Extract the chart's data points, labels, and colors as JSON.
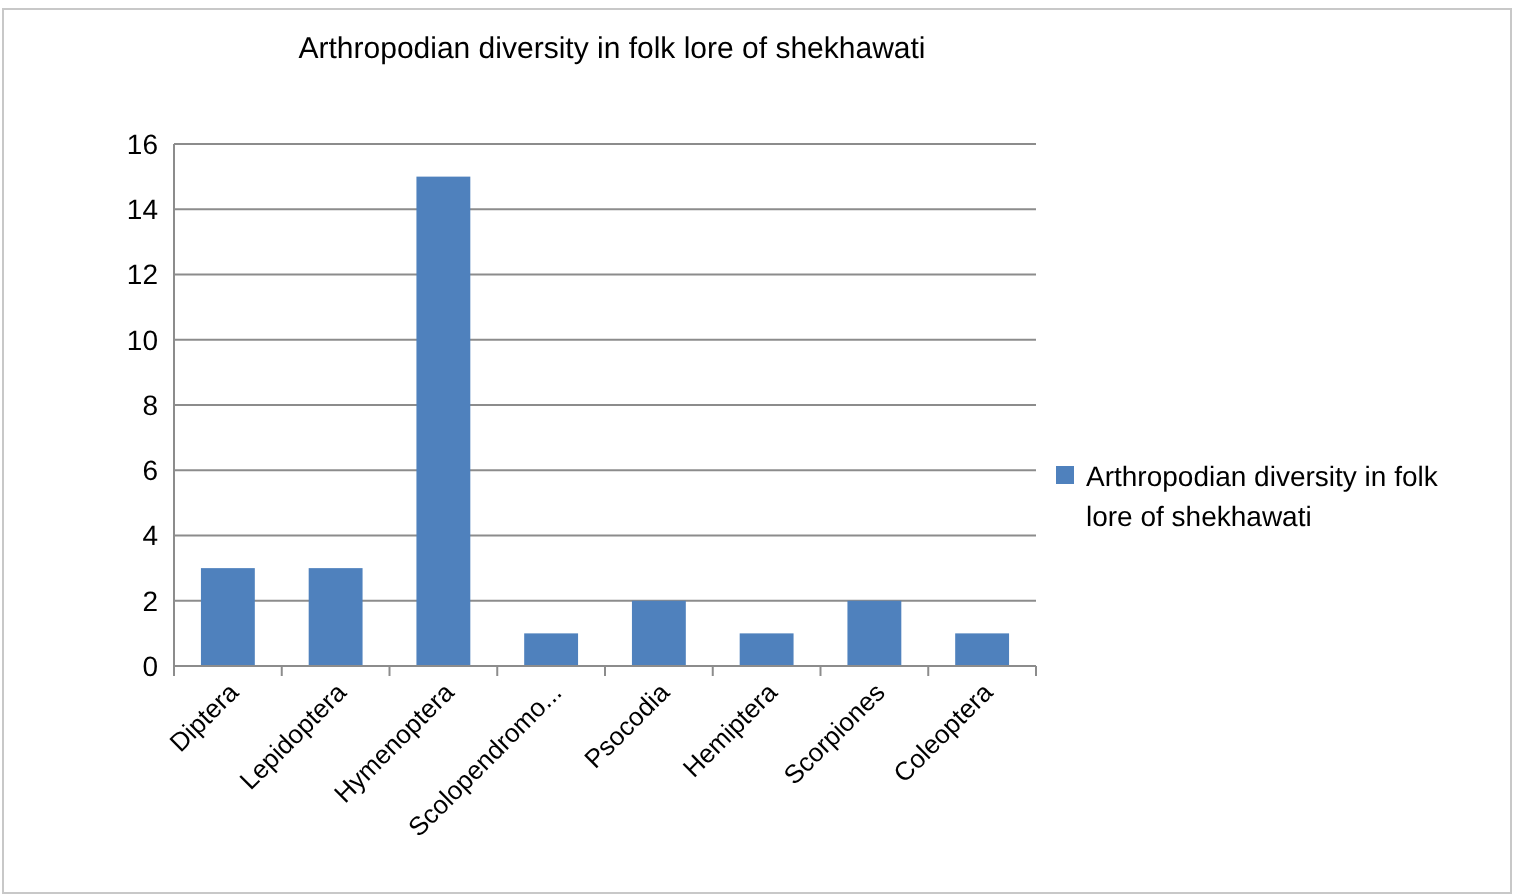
{
  "chart_data": {
    "type": "bar",
    "title": "Arthropodian diversity in folk lore of shekhawati",
    "categories": [
      "Diptera",
      "Lepidoptera",
      "Hymenoptera",
      "Scolopendromo...",
      "Psocodia",
      "Hemiptera",
      "Scorpiones",
      "Coleoptera"
    ],
    "series": [
      {
        "name": "Arthropodian diversity in folk lore of shekhawati",
        "color": "#4f81bd",
        "values": [
          3,
          3,
          15,
          1,
          2,
          1,
          2,
          1
        ]
      }
    ],
    "ylim": [
      0,
      16
    ],
    "yticks": [
      0,
      2,
      4,
      6,
      8,
      10,
      12,
      14,
      16
    ],
    "grid": "y",
    "legend": "right"
  }
}
